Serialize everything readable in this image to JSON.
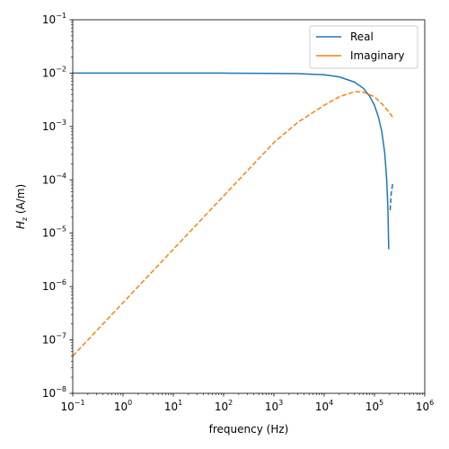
{
  "chart_data": {
    "type": "line",
    "xlabel": "frequency (Hz)",
    "ylabel_main": "H",
    "ylabel_sub": "z",
    "ylabel_unit": " (A/m)",
    "x_scale": "log",
    "y_scale": "log",
    "xlim": [
      0.1,
      1000000
    ],
    "ylim": [
      1e-08,
      0.1
    ],
    "x_tick_labels": [
      {
        "value": 0.1,
        "base": "10",
        "exp": "−1"
      },
      {
        "value": 1,
        "base": "10",
        "exp": "0"
      },
      {
        "value": 10,
        "base": "10",
        "exp": "1"
      },
      {
        "value": 100,
        "base": "10",
        "exp": "2"
      },
      {
        "value": 1000,
        "base": "10",
        "exp": "3"
      },
      {
        "value": 10000,
        "base": "10",
        "exp": "4"
      },
      {
        "value": 100000,
        "base": "10",
        "exp": "5"
      },
      {
        "value": 1000000,
        "base": "10",
        "exp": "6"
      }
    ],
    "y_tick_labels": [
      {
        "value": 1e-08,
        "base": "10",
        "exp": "−8"
      },
      {
        "value": 1e-07,
        "base": "10",
        "exp": "−7"
      },
      {
        "value": 1e-06,
        "base": "10",
        "exp": "−6"
      },
      {
        "value": 1e-05,
        "base": "10",
        "exp": "−5"
      },
      {
        "value": 0.0001,
        "base": "10",
        "exp": "−4"
      },
      {
        "value": 0.001,
        "base": "10",
        "exp": "−3"
      },
      {
        "value": 0.01,
        "base": "10",
        "exp": "−2"
      },
      {
        "value": 0.1,
        "base": "10",
        "exp": "−1"
      }
    ],
    "grid": false,
    "legend_position": "top-right",
    "series": [
      {
        "name": "Real",
        "color": "#1f77b4",
        "segments": [
          {
            "style": "solid",
            "points": [
              [
                0.1,
                0.01
              ],
              [
                1,
                0.01
              ],
              [
                10,
                0.01
              ],
              [
                100,
                0.01
              ],
              [
                1000,
                0.0099
              ],
              [
                3000,
                0.0098
              ],
              [
                10000,
                0.0093
              ],
              [
                20000,
                0.0085
              ],
              [
                40000,
                0.0068
              ],
              [
                60000,
                0.0052
              ],
              [
                80000,
                0.0037
              ],
              [
                100000,
                0.0025
              ],
              [
                120000,
                0.0015
              ],
              [
                140000,
                0.0008
              ],
              [
                160000,
                0.00032
              ],
              [
                175000,
                0.0001
              ],
              [
                185000,
                3e-05
              ],
              [
                192000,
                5e-06
              ]
            ]
          },
          {
            "style": "dashed",
            "points": [
              [
                205000,
                2.7e-05
              ],
              [
                215000,
                5.5e-05
              ],
              [
                230000,
                8.5e-05
              ]
            ]
          }
        ]
      },
      {
        "name": "Imaginary",
        "color": "#ff7f0e",
        "segments": [
          {
            "style": "dashed",
            "points": [
              [
                0.1,
                5e-08
              ],
              [
                1,
                5e-07
              ],
              [
                10,
                5e-06
              ],
              [
                100,
                5e-05
              ],
              [
                1000,
                0.0005
              ],
              [
                3000,
                0.0012
              ],
              [
                10000,
                0.0025
              ],
              [
                20000,
                0.0036
              ],
              [
                40000,
                0.0045
              ],
              [
                60000,
                0.0044
              ],
              [
                100000,
                0.0036
              ],
              [
                150000,
                0.0025
              ],
              [
                200000,
                0.0018
              ],
              [
                240000,
                0.0014
              ]
            ]
          }
        ]
      }
    ]
  }
}
